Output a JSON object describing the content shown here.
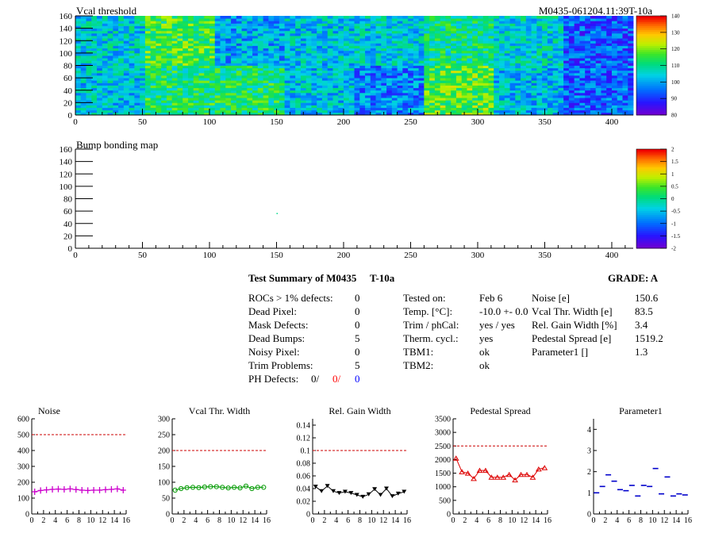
{
  "header": {
    "map_title": "Vcal threshold",
    "module_tag": "M0435-061204.11:39T-10a",
    "bump_title": "Bump bonding map"
  },
  "chart_data": [
    {
      "type": "heatmap",
      "title": "Vcal threshold",
      "x_ticks": [
        0,
        50,
        100,
        150,
        200,
        250,
        300,
        350,
        400
      ],
      "y_ticks": [
        0,
        20,
        40,
        60,
        80,
        100,
        120,
        140,
        160
      ],
      "xlim": [
        0,
        416
      ],
      "ylim": [
        0,
        160
      ],
      "z_scale": {
        "min": 80,
        "max": 140,
        "ticks": [
          80,
          90,
          100,
          110,
          120,
          130,
          140
        ]
      },
      "roc_tiles": {
        "top_row_mean": [
          104,
          115,
          100,
          103,
          104,
          110,
          105,
          93
        ],
        "bottom_row_mean": [
          103,
          112,
          112,
          103,
          97,
          117,
          102,
          94
        ],
        "tile_width": 52,
        "tile_height": 80
      }
    },
    {
      "type": "heatmap",
      "title": "Bump bonding map",
      "x_ticks": [
        0,
        50,
        100,
        150,
        200,
        250,
        300,
        350,
        400
      ],
      "y_ticks": [
        0,
        20,
        40,
        60,
        80,
        100,
        120,
        140,
        160
      ],
      "xlim": [
        0,
        416
      ],
      "ylim": [
        0,
        160
      ],
      "z_scale": {
        "min": -2,
        "max": 2,
        "ticks": [
          -2,
          -1.5,
          -1,
          -0.5,
          0,
          0.5,
          1,
          1.5,
          2
        ]
      },
      "points": [
        {
          "x": 150,
          "y": 57,
          "z": 0
        }
      ]
    },
    {
      "type": "line",
      "title": "Noise",
      "x": [
        0,
        1,
        2,
        3,
        4,
        5,
        6,
        7,
        8,
        9,
        10,
        11,
        12,
        13,
        14,
        15
      ],
      "values": [
        140,
        148,
        152,
        155,
        157,
        155,
        158,
        154,
        150,
        148,
        150,
        150,
        153,
        155,
        158,
        150
      ],
      "ylim": [
        0,
        600
      ],
      "y_ticks": [
        0,
        100,
        200,
        300,
        400,
        500,
        600
      ],
      "x_ticks": [
        0,
        2,
        4,
        6,
        8,
        10,
        12,
        14,
        16
      ],
      "threshold": 500,
      "marker": "cross",
      "color": "#cc00cc"
    },
    {
      "type": "line",
      "title": "Vcal Thr. Width",
      "x": [
        0,
        1,
        2,
        3,
        4,
        5,
        6,
        7,
        8,
        9,
        10,
        11,
        12,
        13,
        14,
        15
      ],
      "values": [
        75,
        80,
        83,
        84,
        83,
        85,
        86,
        86,
        84,
        82,
        84,
        82,
        88,
        80,
        84,
        84
      ],
      "ylim": [
        0,
        300
      ],
      "y_ticks": [
        0,
        50,
        100,
        150,
        200,
        250,
        300
      ],
      "x_ticks": [
        0,
        2,
        4,
        6,
        8,
        10,
        12,
        14,
        16
      ],
      "threshold": 200,
      "marker": "circle",
      "color": "#009900"
    },
    {
      "type": "line",
      "title": "Rel. Gain Width",
      "x": [
        0,
        1,
        2,
        3,
        4,
        5,
        6,
        7,
        8,
        9,
        10,
        11,
        12,
        13,
        14,
        15
      ],
      "values": [
        0.043,
        0.036,
        0.044,
        0.036,
        0.033,
        0.035,
        0.033,
        0.03,
        0.027,
        0.031,
        0.039,
        0.03,
        0.04,
        0.028,
        0.032,
        0.035
      ],
      "ylim": [
        0,
        0.15
      ],
      "y_ticks": [
        0,
        0.02,
        0.04,
        0.06,
        0.08,
        0.1,
        0.12,
        0.14
      ],
      "x_ticks": [
        0,
        2,
        4,
        6,
        8,
        10,
        12,
        14,
        16
      ],
      "threshold": 0.1,
      "marker": "triangle-down",
      "color": "#000000"
    },
    {
      "type": "line",
      "title": "Pedestal Spread",
      "x": [
        0,
        1,
        2,
        3,
        4,
        5,
        6,
        7,
        8,
        9,
        10,
        11,
        12,
        13,
        14,
        15
      ],
      "values": [
        2050,
        1550,
        1500,
        1300,
        1600,
        1600,
        1350,
        1350,
        1350,
        1450,
        1250,
        1450,
        1450,
        1350,
        1650,
        1700
      ],
      "ylim": [
        0,
        3500
      ],
      "y_ticks": [
        0,
        500,
        1000,
        1500,
        2000,
        2500,
        3000,
        3500
      ],
      "x_ticks": [
        0,
        2,
        4,
        6,
        8,
        10,
        12,
        14,
        16
      ],
      "threshold": 2500,
      "marker": "triangle-up",
      "color": "#dd0000"
    },
    {
      "type": "scatter",
      "title": "Parameter1",
      "x": [
        0,
        1,
        2,
        3,
        4,
        5,
        6,
        7,
        8,
        9,
        10,
        11,
        12,
        13,
        14,
        15
      ],
      "values": [
        1.0,
        1.3,
        1.85,
        1.55,
        1.15,
        1.1,
        1.35,
        0.85,
        1.35,
        1.3,
        2.15,
        0.95,
        1.75,
        0.85,
        0.95,
        0.9
      ],
      "ylim": [
        0,
        4.5
      ],
      "y_ticks": [
        0,
        1,
        2,
        3,
        4
      ],
      "x_ticks": [
        0,
        2,
        4,
        6,
        8,
        10,
        12,
        14,
        16
      ],
      "marker": "hline",
      "color": "#0000cc"
    }
  ],
  "summary": {
    "title": "Test Summary of M0435",
    "title_tag": "T-10a",
    "grade": "GRADE:  A",
    "col1": [
      {
        "label": "ROCs > 1% defects:",
        "value": "0"
      },
      {
        "label": "Dead Pixel:",
        "value": "0"
      },
      {
        "label": "Mask Defects:",
        "value": "0"
      },
      {
        "label": "Dead Bumps:",
        "value": "5"
      },
      {
        "label": "Noisy Pixel:",
        "value": "0"
      },
      {
        "label": "Trim Problems:",
        "value": "5"
      }
    ],
    "ph_defects": {
      "label": "PH Defects:",
      "v1": "0/",
      "v2": "0/",
      "v3": "0",
      "v1_color": "#000000",
      "v2_color": "#ff0000",
      "v3_color": "#0000ff"
    },
    "col2": [
      {
        "label": "Tested on:",
        "value": "Feb 6"
      },
      {
        "label": "Temp. [°C]:",
        "value": "-10.0 +- 0.0"
      },
      {
        "label": "Trim / phCal:",
        "value": "yes / yes"
      },
      {
        "label": "Therm. cycl.:",
        "value": "yes"
      },
      {
        "label": "TBM1:",
        "value": "ok"
      },
      {
        "label": "TBM2:",
        "value": "ok"
      }
    ],
    "col3": [
      {
        "label": "Noise [e]",
        "value": "150.6"
      },
      {
        "label": "Vcal Thr. Width [e]",
        "value": "83.5"
      },
      {
        "label": "Rel. Gain Width [%]",
        "value": "3.4"
      },
      {
        "label": "Pedestal Spread [e]",
        "value": "1519.2"
      },
      {
        "label": "Parameter1 []",
        "value": "1.3"
      }
    ]
  }
}
